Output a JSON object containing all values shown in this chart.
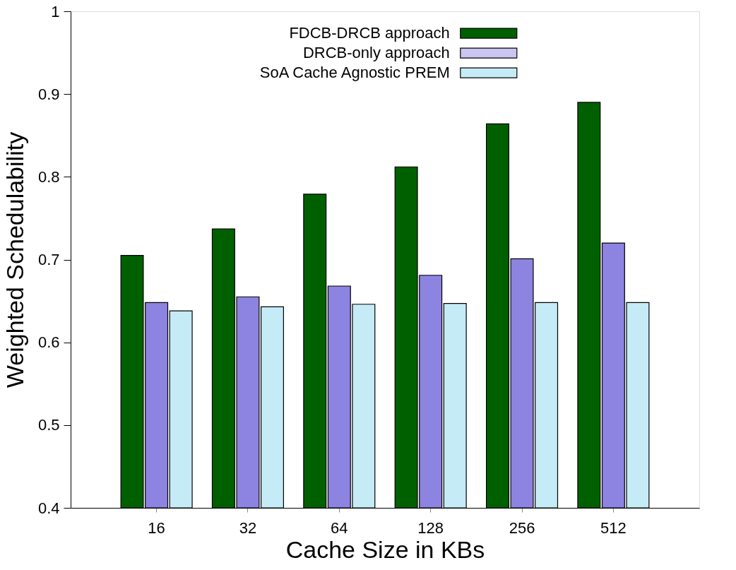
{
  "chart_data": {
    "type": "bar",
    "xlabel": "Cache Size in KBs",
    "ylabel": "Weighted Schedulability",
    "categories": [
      "16",
      "32",
      "64",
      "128",
      "256",
      "512"
    ],
    "series": [
      {
        "name": "FDCB-DRCB approach",
        "color": "#006000",
        "values": [
          0.705,
          0.737,
          0.779,
          0.812,
          0.864,
          0.89
        ]
      },
      {
        "name": "DRCB-only approach",
        "color": "#5040d0",
        "values": [
          0.648,
          0.655,
          0.668,
          0.681,
          0.701,
          0.72
        ]
      },
      {
        "name": "SoA Cache Agnostic PREM",
        "color": "#40c0e0",
        "values": [
          0.638,
          0.643,
          0.646,
          0.647,
          0.648,
          0.648
        ]
      }
    ],
    "ylim": [
      0.4,
      1
    ],
    "yticks": [
      0.4,
      0.5,
      0.6,
      0.7,
      0.8,
      0.9,
      {
        "value": 1,
        "label": "1"
      }
    ],
    "grid": false,
    "legend": "top"
  }
}
